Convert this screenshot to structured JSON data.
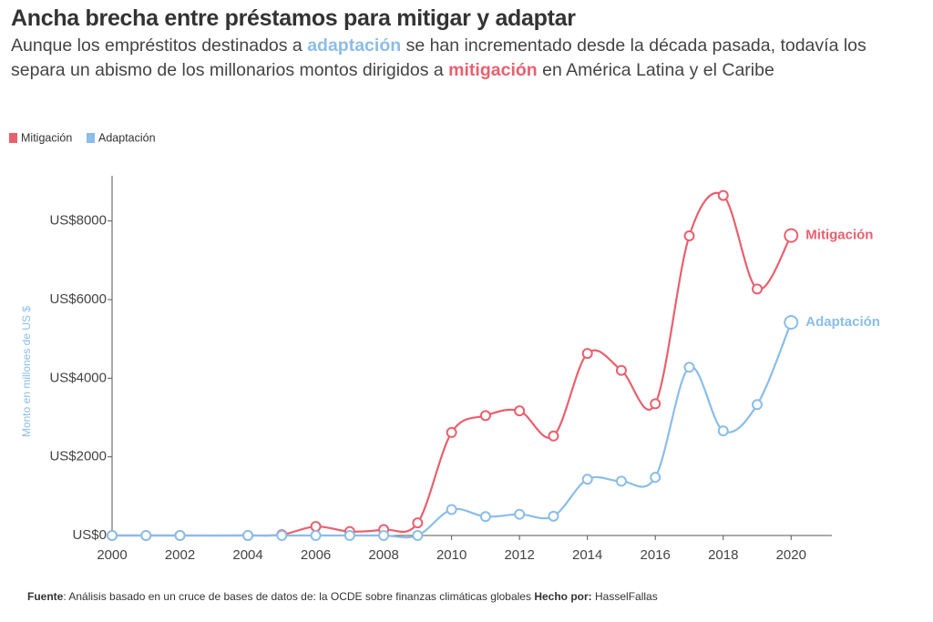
{
  "chart_data": {
    "type": "line",
    "title": "Ancha brecha entre préstamos para mitigar y adaptar",
    "subtitle": [
      "Aunque los empréstitos destinados a",
      "adaptación",
      "se han incrementado desde la década pasada, todavía los separa un abismo de los millonarios montos dirigidos a",
      "mitigación",
      "en América Latina y el Caribe"
    ],
    "y_label": "Monto en millones de US $",
    "x": [
      2000,
      2001,
      2002,
      2004,
      2005,
      2006,
      2007,
      2008,
      2009,
      2010,
      2011,
      2012,
      2013,
      2014,
      2015,
      2016,
      2017,
      2018,
      2019,
      2020
    ],
    "series": [
      {
        "name": "Mitigación",
        "color": "#e8606f",
        "values": [
          0,
          0,
          0,
          0,
          20,
          230,
          100,
          150,
          320,
          2620,
          3050,
          3170,
          2530,
          4630,
          4200,
          3350,
          7620,
          8650,
          6270,
          7630
        ]
      },
      {
        "name": "Adaptación",
        "color": "#8bbde8",
        "values": [
          0,
          0,
          0,
          0,
          0,
          0,
          0,
          0,
          0,
          660,
          480,
          540,
          490,
          1430,
          1380,
          1480,
          4280,
          2660,
          3330,
          5420
        ]
      }
    ],
    "xlim": [
      2000,
      2021.2
    ],
    "xticks": [
      2000,
      2002,
      2004,
      2006,
      2008,
      2010,
      2012,
      2014,
      2016,
      2018,
      2020
    ],
    "ylim": [
      0,
      9150
    ],
    "yticks": [
      {
        "value": 0,
        "label": "US$0"
      },
      {
        "value": 2000,
        "label": "US$2000"
      },
      {
        "value": 4000,
        "label": "US$4000"
      },
      {
        "value": 6000,
        "label": "US$6000"
      },
      {
        "value": 8000,
        "label": "US$8000"
      }
    ],
    "grid": false,
    "source": {
      "label": "Fuente",
      "text": ": Análisis basado en un cruce de bases de datos de: la OCDE sobre finanzas climáticas globales",
      "credit_label": "Hecho por:",
      "credit": "HasselFallas"
    }
  }
}
